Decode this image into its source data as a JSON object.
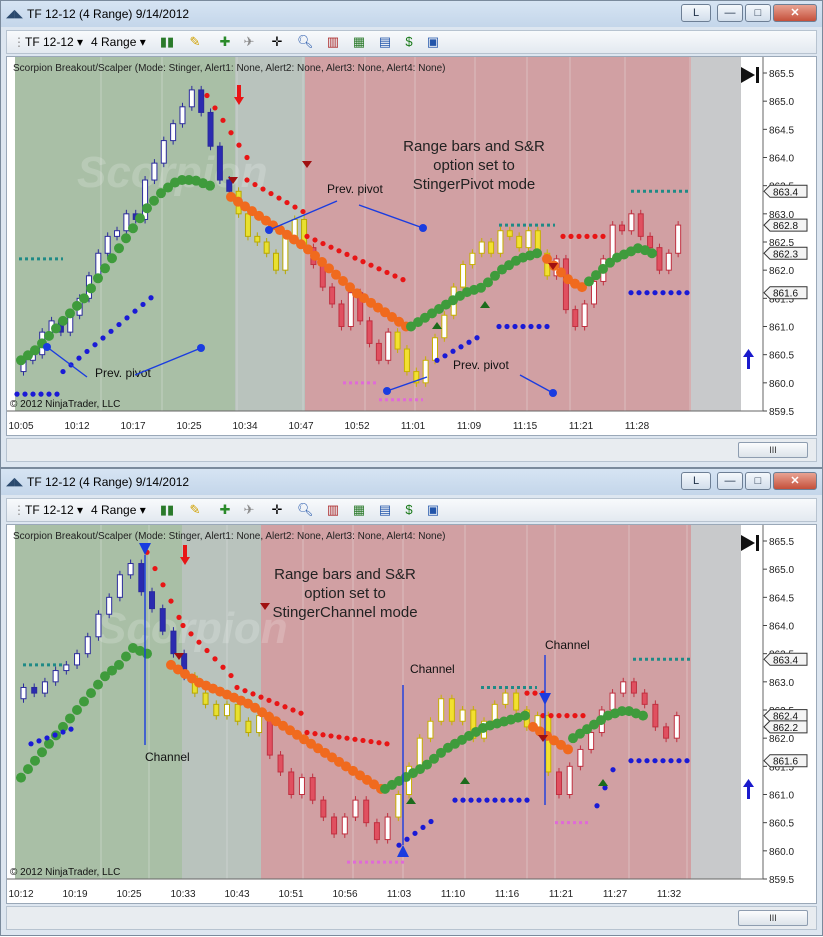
{
  "windows": [
    {
      "id": "top",
      "title": "TF 12-12 (4 Range)  9/14/2012",
      "toolbar": {
        "instrument": "TF 12-12",
        "interval": "4 Range"
      },
      "indicator_label": "Scorpion Breakout/Scalper (Mode: Stinger, Alert1: None, Alert2: None, Alert3: None, Alert4: None)",
      "copyright": "© 2012 NinjaTrader, LLC",
      "watermark": "Scorpion",
      "headline": [
        "Range bars and S&R",
        "option set to",
        "StingerPivot mode"
      ],
      "annotations": [
        "Prev. pivot",
        "Prev. pivot",
        "Prev. pivot"
      ],
      "price_ticks": [
        "865.5",
        "865.0",
        "864.5",
        "864.0",
        "863.5",
        "863.0",
        "862.5",
        "862.0",
        "861.5",
        "861.0",
        "860.5",
        "860.0",
        "859.5"
      ],
      "price_flags": [
        "863.4",
        "862.8",
        "862.3",
        "861.6"
      ],
      "time_ticks": [
        "10:05",
        "10:12",
        "10:17",
        "10:25",
        "10:34",
        "10:47",
        "10:52",
        "11:01",
        "11:09",
        "11:15",
        "11:21",
        "11:28"
      ]
    },
    {
      "id": "bottom",
      "title": "TF 12-12 (4 Range)  9/14/2012",
      "toolbar": {
        "instrument": "TF 12-12",
        "interval": "4 Range"
      },
      "indicator_label": "Scorpion Breakout/Scalper (Mode: Stinger, Alert1: None, Alert2: None, Alert3: None, Alert4: None)",
      "copyright": "© 2012 NinjaTrader, LLC",
      "watermark": "Scorpion",
      "headline": [
        "Range bars and S&R",
        "option set to",
        "StingerChannel mode"
      ],
      "annotations": [
        "Channel",
        "Channel",
        "Channel"
      ],
      "price_ticks": [
        "865.5",
        "865.0",
        "864.5",
        "864.0",
        "863.5",
        "863.0",
        "862.5",
        "862.0",
        "861.5",
        "861.0",
        "860.5",
        "860.0",
        "859.5"
      ],
      "price_flags": [
        "863.4",
        "862.4",
        "862.2",
        "861.6"
      ],
      "time_ticks": [
        "10:12",
        "10:19",
        "10:25",
        "10:33",
        "10:43",
        "10:51",
        "10:56",
        "11:03",
        "11:10",
        "11:16",
        "11:21",
        "11:27",
        "11:32"
      ]
    }
  ],
  "window_buttons": {
    "link": "L",
    "minimize": "—",
    "maximize": "□",
    "close": "✕"
  },
  "scroll_thumb": "III",
  "colors": {
    "green_zone": "#a9bfa6",
    "gray_zone": "#b9c3bd",
    "red_zone": "#d1a0a3",
    "trend_green": "#3f9b3c",
    "trend_orange": "#f06a1e",
    "resistance_red": "#e81515",
    "support_blue": "#1a1ad6",
    "pivot_teal": "#1f8a86",
    "pivot_pink": "#e06ad8",
    "arrow_blue": "#1a3ce0",
    "arrow_darkred": "#a01010"
  },
  "chart_data": [
    {
      "type": "candlestick",
      "title": "Range bars and S&R option set to StingerPivot mode",
      "y_range": [
        859.5,
        865.5
      ],
      "x_ticks": [
        "10:05",
        "10:12",
        "10:17",
        "10:25",
        "10:34",
        "10:47",
        "10:52",
        "11:01",
        "11:09",
        "11:15",
        "11:21",
        "11:28"
      ],
      "last_values": {
        "pivot_high": 863.4,
        "level_1": 862.8,
        "close": 862.3,
        "support": 861.6
      },
      "closes": [
        860.4,
        860.5,
        860.9,
        861.1,
        860.9,
        861.2,
        861.5,
        861.9,
        862.3,
        862.6,
        862.7,
        863.0,
        862.9,
        863.6,
        863.9,
        864.3,
        864.6,
        864.9,
        865.2,
        864.8,
        864.2,
        863.6,
        863.4,
        863.0,
        862.6,
        862.5,
        862.3,
        862.0,
        862.6,
        862.9,
        862.4,
        862.1,
        861.7,
        861.4,
        861.0,
        861.6,
        861.1,
        860.7,
        860.4,
        860.9,
        860.6,
        860.2,
        860.0,
        860.4,
        860.8,
        861.2,
        861.7,
        862.1,
        862.3,
        862.5,
        862.3,
        862.7,
        862.6,
        862.4,
        862.7,
        862.3,
        861.9,
        862.2,
        861.3,
        861.0,
        861.4,
        861.8,
        862.2,
        862.8,
        862.7,
        863.0,
        862.6,
        862.4,
        862.0,
        862.3,
        862.8
      ],
      "trend_green": [
        860.4,
        860.6,
        860.9,
        861.2,
        861.5,
        861.9,
        862.3,
        862.7,
        863.1,
        863.4,
        863.6,
        863.6,
        863.5
      ],
      "trend_orange": [
        863.3,
        863.0,
        862.7,
        862.4,
        862.0,
        861.6,
        861.3,
        861.0
      ],
      "trend_gray_green": [
        861.0,
        861.2,
        861.4,
        861.6,
        861.7,
        862.0,
        862.2,
        862.3
      ],
      "trend_orange2": [
        862.2,
        862.0,
        861.8,
        861.7
      ],
      "trend_green2": [
        861.8,
        862.0,
        862.2,
        862.3,
        862.4,
        862.3
      ]
    },
    {
      "type": "candlestick",
      "title": "Range bars and S&R option set to StingerChannel mode",
      "y_range": [
        859.5,
        865.5
      ],
      "x_ticks": [
        "10:12",
        "10:19",
        "10:25",
        "10:33",
        "10:43",
        "10:51",
        "10:56",
        "11:03",
        "11:10",
        "11:16",
        "11:21",
        "11:27",
        "11:32"
      ],
      "last_values": {
        "pivot_high": 863.4,
        "level_1": 862.4,
        "close": 862.2,
        "support": 861.6
      },
      "closes": [
        862.9,
        862.8,
        863.0,
        863.2,
        863.3,
        863.5,
        863.8,
        864.2,
        864.5,
        864.9,
        865.1,
        864.6,
        864.3,
        863.9,
        863.5,
        863.1,
        862.8,
        862.6,
        862.4,
        862.6,
        862.3,
        862.1,
        862.4,
        861.7,
        861.4,
        861.0,
        861.3,
        860.9,
        860.6,
        860.3,
        860.6,
        860.9,
        860.5,
        860.2,
        860.6,
        861.0,
        861.5,
        862.0,
        862.3,
        862.7,
        862.3,
        862.5,
        862.0,
        862.3,
        862.6,
        862.8,
        862.5,
        862.2,
        862.4,
        861.4,
        861.0,
        861.5,
        861.8,
        862.1,
        862.5,
        862.8,
        863.0,
        862.8,
        862.6,
        862.2,
        862.0,
        862.4
      ],
      "trend_green": [
        861.3,
        861.6,
        861.9,
        862.2,
        862.5,
        862.8,
        863.1,
        863.3,
        863.6,
        863.5
      ],
      "trend_orange": [
        863.3,
        863.0,
        862.8,
        862.6,
        862.3,
        862.0,
        861.7,
        861.4,
        861.1
      ],
      "trend_gray_green": [
        861.1,
        861.3,
        861.5,
        861.8,
        862.0,
        862.2,
        862.3,
        862.4
      ],
      "trend_orange2": [
        862.2,
        862.0,
        861.8
      ],
      "trend_green2": [
        862.0,
        862.2,
        862.4,
        862.5,
        862.4
      ]
    }
  ]
}
